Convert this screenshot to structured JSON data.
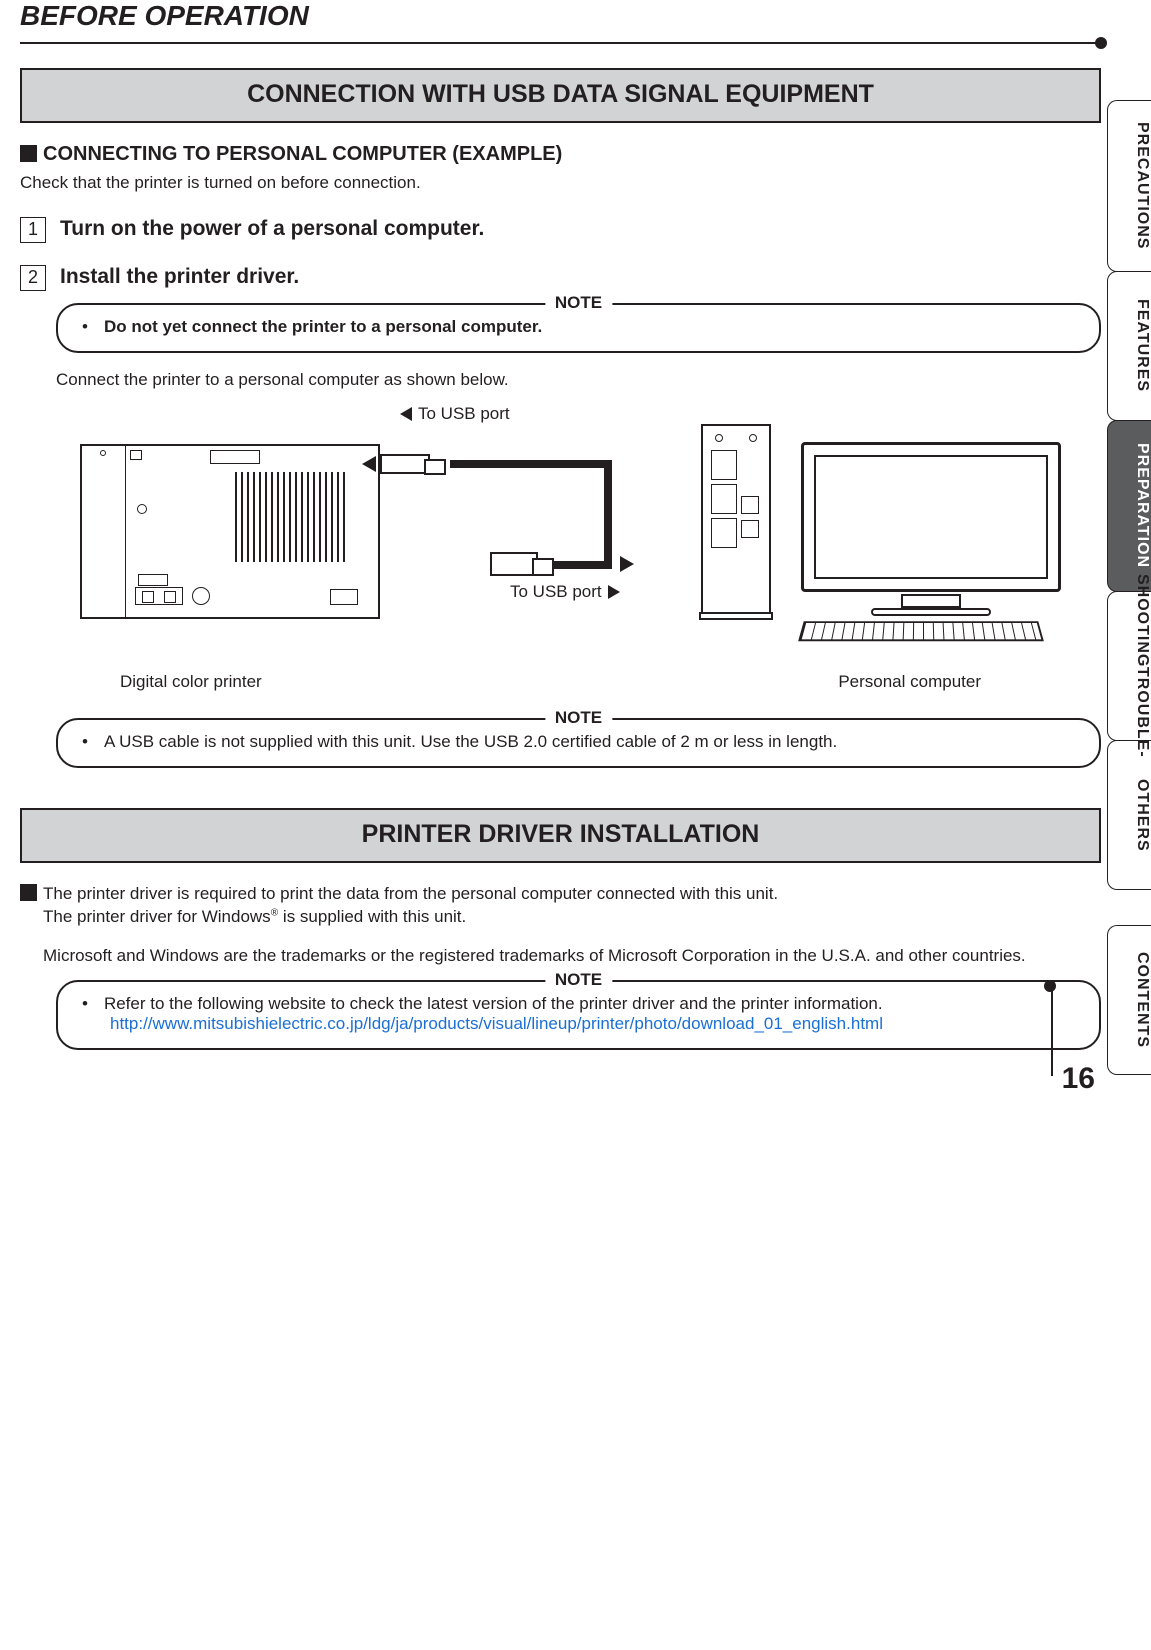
{
  "page": {
    "title": "BEFORE OPERATION",
    "number": "16"
  },
  "side_tabs": [
    {
      "id": "precautions",
      "label": "PRECAUTIONS",
      "height_class": "tab-lg",
      "active": false
    },
    {
      "id": "features",
      "label": "FEATURES",
      "height_class": "tab-sm",
      "active": false
    },
    {
      "id": "preparation",
      "label": "PREPARATION",
      "height_class": "tab-lg",
      "active": true
    },
    {
      "id": "troubleshooting",
      "label_a": "TROUBLE-",
      "label_b": "SHOOTING",
      "height_class": "tab-ts",
      "double": true,
      "active": false
    },
    {
      "id": "others",
      "label": "OTHERS",
      "height_class": "tab-sm",
      "active": false
    },
    {
      "id": "contents",
      "label": "CONTENTS",
      "height_class": "tab-sm",
      "active": false,
      "gap_before": true
    }
  ],
  "section1": {
    "banner": "CONNECTION WITH USB DATA SIGNAL EQUIPMENT",
    "subheading": "CONNECTING TO PERSONAL COMPUTER (EXAMPLE)",
    "intro": "Check that the printer is turned on before connection.",
    "steps": [
      {
        "num": "1",
        "text": "Turn on the power of a personal computer."
      },
      {
        "num": "2",
        "text": "Install the printer driver."
      }
    ],
    "note1_label": "NOTE",
    "note1_text": "Do not yet connect the printer to a personal computer.",
    "connect_text": "Connect the printer to a personal computer as shown below.",
    "diagram": {
      "to_usb_top": "To USB port",
      "to_usb_bot": "To USB port",
      "printer_label": "Digital color printer",
      "pc_label": "Personal computer"
    },
    "note2_label": "NOTE",
    "note2_text": "A USB cable is not supplied with this unit. Use the USB 2.0 certified cable of 2 m or less in length."
  },
  "section2": {
    "banner": "PRINTER DRIVER INSTALLATION",
    "para1_a": "The printer driver is required to print the data from the personal computer connected with this unit.",
    "para1_b": "The printer driver for Windows",
    "para1_c": " is supplied with this unit.",
    "para2": "Microsoft and Windows are the trademarks or the registered trademarks of Microsoft Corporation in the U.S.A. and other countries.",
    "note_label": "NOTE",
    "note_text": "Refer to the following website to check the latest version of the printer driver and the printer information.",
    "note_url": "http://www.mitsubishielectric.co.jp/ldg/ja/products/visual/lineup/printer/photo/download_01_english.html"
  },
  "colors": {
    "text": "#231f20",
    "banner_bg": "#d2d3d5",
    "tab_active_bg": "#5b5c5e",
    "tab_active_fg": "#ffffff",
    "link": "#1a6fd6",
    "page_bg": "#ffffff"
  }
}
